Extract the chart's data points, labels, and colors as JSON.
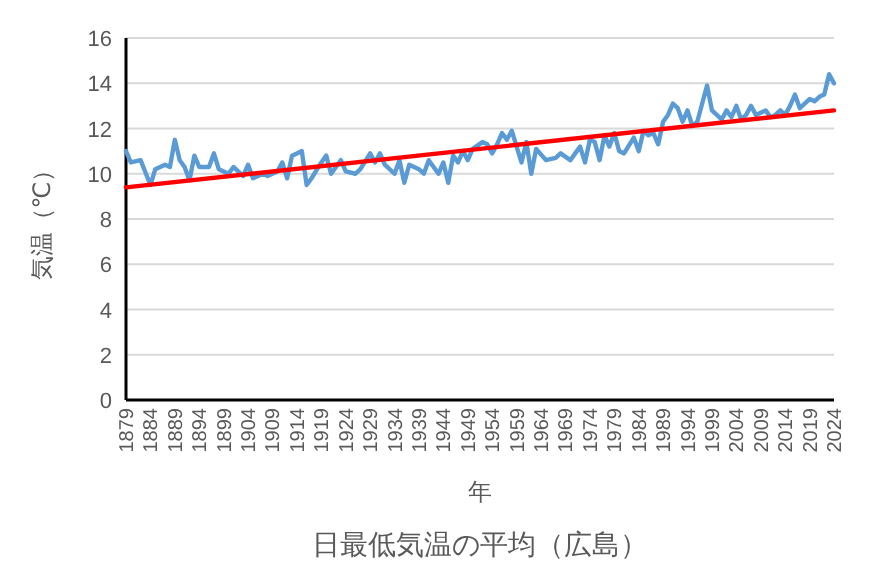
{
  "chart_data": {
    "type": "line",
    "title": "日最低気温の平均（広島）",
    "xlabel": "年",
    "ylabel": "気温（℃）",
    "xlim": [
      1879,
      2024
    ],
    "ylim": [
      0,
      16
    ],
    "yticks": [
      0,
      2,
      4,
      6,
      8,
      10,
      12,
      14,
      16
    ],
    "xticks": [
      1879,
      1884,
      1889,
      1894,
      1899,
      1904,
      1909,
      1914,
      1919,
      1924,
      1929,
      1934,
      1939,
      1944,
      1949,
      1954,
      1959,
      1964,
      1969,
      1974,
      1979,
      1984,
      1989,
      1994,
      1999,
      2004,
      2009,
      2014,
      2019,
      2024
    ],
    "grid": "y",
    "series": [
      {
        "color": "#5b9bd5",
        "x": [
          1879,
          1880,
          1882,
          1884,
          1885,
          1887,
          1888,
          1889,
          1890,
          1891,
          1892,
          1893,
          1894,
          1896,
          1897,
          1898,
          1900,
          1901,
          1903,
          1904,
          1905,
          1907,
          1908,
          1910,
          1911,
          1912,
          1913,
          1914,
          1915,
          1916,
          1917,
          1919,
          1920,
          1921,
          1923,
          1924,
          1926,
          1927,
          1929,
          1930,
          1931,
          1932,
          1934,
          1935,
          1936,
          1937,
          1939,
          1940,
          1941,
          1943,
          1944,
          1945,
          1946,
          1947,
          1948,
          1949,
          1950,
          1952,
          1953,
          1954,
          1955,
          1956,
          1957,
          1958,
          1959,
          1960,
          1961,
          1962,
          1963,
          1965,
          1967,
          1968,
          1970,
          1971,
          1972,
          1973,
          1974,
          1975,
          1976,
          1977,
          1978,
          1979,
          1980,
          1981,
          1983,
          1984,
          1985,
          1986,
          1987,
          1988,
          1989,
          1990,
          1991,
          1992,
          1993,
          1994,
          1995,
          1996,
          1998,
          1999,
          2000,
          2001,
          2002,
          2003,
          2004,
          2005,
          2006,
          2007,
          2008,
          2009,
          2010,
          2011,
          2012,
          2013,
          2014,
          2015,
          2016,
          2017,
          2018,
          2019,
          2020,
          2021,
          2022,
          2023,
          2024
        ],
        "values": [
          11.0,
          10.5,
          10.6,
          9.5,
          10.2,
          10.4,
          10.3,
          11.5,
          10.6,
          10.3,
          9.7,
          10.8,
          10.3,
          10.3,
          10.9,
          10.2,
          10.0,
          10.3,
          9.9,
          10.4,
          9.8,
          10.0,
          9.9,
          10.1,
          10.5,
          9.8,
          10.8,
          10.9,
          11.0,
          9.5,
          9.8,
          10.5,
          10.8,
          10.0,
          10.6,
          10.1,
          10.0,
          10.2,
          10.9,
          10.5,
          10.9,
          10.4,
          10.0,
          10.6,
          9.6,
          10.4,
          10.2,
          10.0,
          10.6,
          10.0,
          10.5,
          9.6,
          10.8,
          10.5,
          11.0,
          10.6,
          11.1,
          11.4,
          11.3,
          10.9,
          11.3,
          11.8,
          11.5,
          11.9,
          11.2,
          10.5,
          11.4,
          10.0,
          11.1,
          10.6,
          10.7,
          10.9,
          10.6,
          10.9,
          11.2,
          10.5,
          11.5,
          11.4,
          10.6,
          11.7,
          11.2,
          11.8,
          11.0,
          10.9,
          11.6,
          11.0,
          11.9,
          11.7,
          11.8,
          11.3,
          12.3,
          12.6,
          13.1,
          12.9,
          12.3,
          12.8,
          12.1,
          12.3,
          13.9,
          12.8,
          12.6,
          12.4,
          12.8,
          12.5,
          13.0,
          12.4,
          12.6,
          13.0,
          12.6,
          12.7,
          12.8,
          12.5,
          12.6,
          12.8,
          12.6,
          13.0,
          13.5,
          12.9,
          13.1,
          13.3,
          13.2,
          13.4,
          13.5,
          14.4,
          14.0
        ]
      },
      {
        "color": "#ff0000",
        "x": [
          1879,
          2024
        ],
        "values": [
          9.4,
          12.8
        ]
      }
    ]
  }
}
